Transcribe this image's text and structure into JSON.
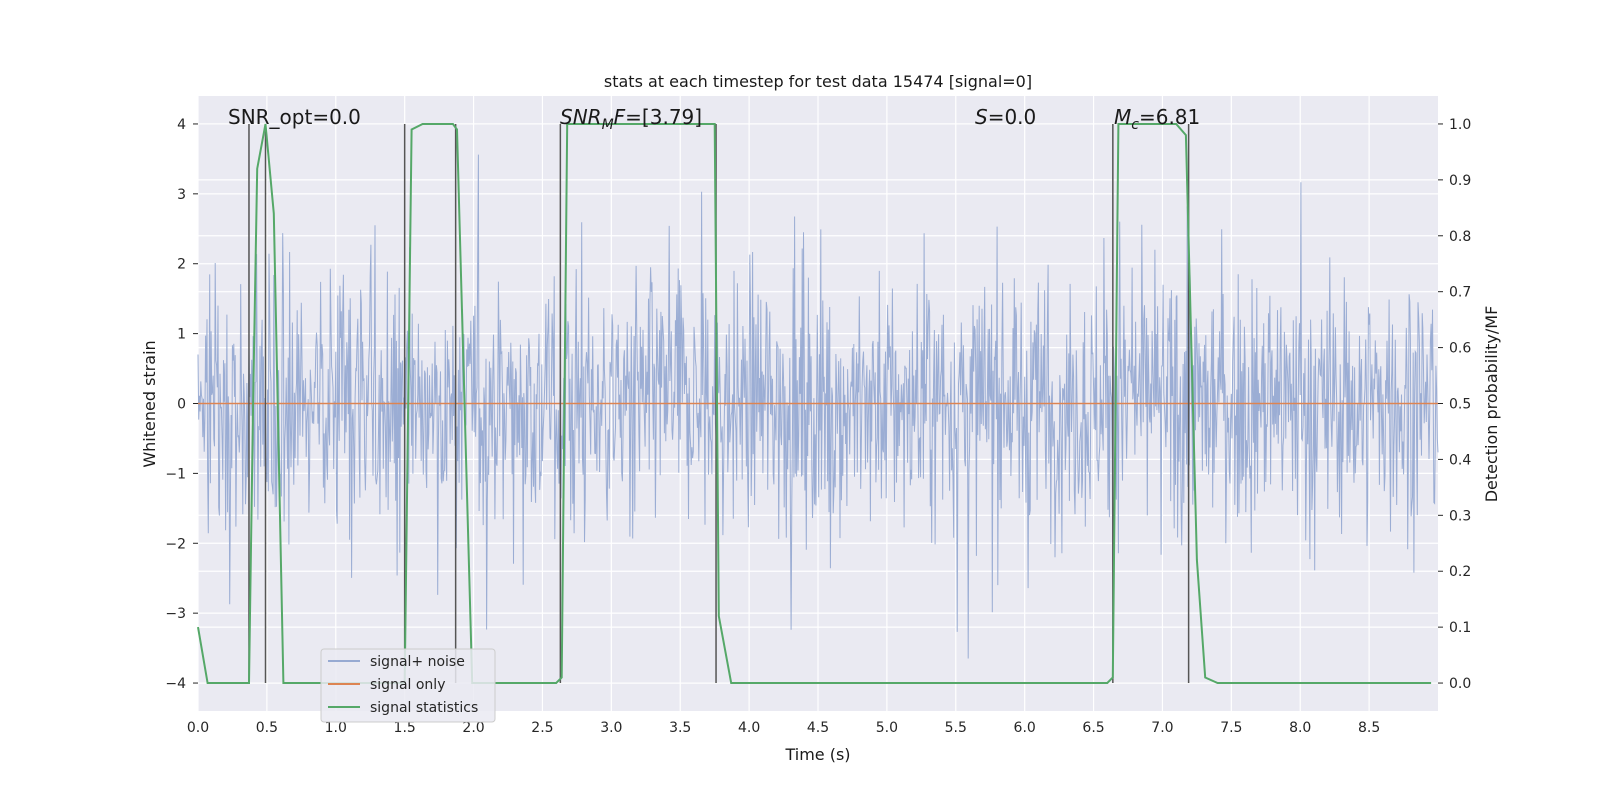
{
  "chart_data": {
    "type": "line",
    "title": "stats at each timestep for test data 15474 [signal=0]",
    "xlabel": "Time (s)",
    "ylabel": "Whitened strain",
    "ylabel_right": "Detection probability/MF",
    "xlim": [
      0.0,
      9.0
    ],
    "ylim": [
      -4.4,
      4.4
    ],
    "ylim_right": [
      -0.05,
      1.05
    ],
    "x_ticks": [
      "0.0",
      "0.5",
      "1.0",
      "1.5",
      "2.0",
      "2.5",
      "3.0",
      "3.5",
      "4.0",
      "4.5",
      "5.0",
      "5.5",
      "6.0",
      "6.5",
      "7.0",
      "7.5",
      "8.0",
      "8.5"
    ],
    "y_ticks": [
      "4",
      "3",
      "2",
      "1",
      "0",
      "−1",
      "−2",
      "−3",
      "−4"
    ],
    "y_right_ticks": [
      "1.0",
      "0.9",
      "0.8",
      "0.7",
      "0.6",
      "0.5",
      "0.4",
      "0.3",
      "0.2",
      "0.1",
      "0.0"
    ],
    "grid": true,
    "legend_position": "lower-left",
    "annotations": {
      "snr_opt": "SNR_opt=0.0",
      "snr_mf_sym": "SNR",
      "snr_mf_sub": "M",
      "snr_mf_f": "F",
      "snr_mf_val": "=[3.79]",
      "s_sym": "S",
      "s_val": "=0.0",
      "mc_sym": "M",
      "mc_sub": "c",
      "mc_val": "=6.81"
    },
    "series": [
      {
        "name": "signal+ noise",
        "color": "#97aad2",
        "description_range": [
          -4.0,
          4.0
        ]
      },
      {
        "name": "signal only",
        "color": "#dd8452",
        "values_constant": 0.0
      },
      {
        "name": "signal statistics",
        "color": "#55a868",
        "x": [
          0.0,
          0.07,
          0.15,
          0.37,
          0.4,
          0.43,
          0.49,
          0.55,
          0.62,
          0.65,
          1.5,
          1.55,
          1.63,
          1.85,
          1.88,
          1.99,
          2.05,
          2.6,
          2.64,
          2.68,
          3.75,
          3.78,
          3.87,
          6.6,
          6.64,
          6.68,
          7.1,
          7.17,
          7.25,
          7.31,
          7.4,
          8.95
        ],
        "y": [
          0.1,
          0.0,
          0.0,
          0.0,
          0.5,
          0.92,
          1.0,
          0.84,
          0.0,
          0.0,
          0.0,
          0.99,
          1.0,
          1.0,
          0.99,
          0.0,
          0.0,
          0.0,
          0.01,
          1.0,
          1.0,
          0.12,
          0.0,
          0.0,
          0.01,
          1.0,
          1.0,
          0.98,
          0.22,
          0.01,
          0.0,
          0.0
        ]
      }
    ],
    "vertical_markers_x": [
      0.37,
      0.49,
      1.5,
      1.87,
      2.63,
      3.76,
      6.64,
      7.19
    ],
    "noise_peak_marks": [
      -2.8,
      -2.4,
      -2.6,
      -3.9,
      -3.7,
      -3.5,
      -3.1,
      -2.8,
      -3.0,
      -2.9
    ]
  }
}
